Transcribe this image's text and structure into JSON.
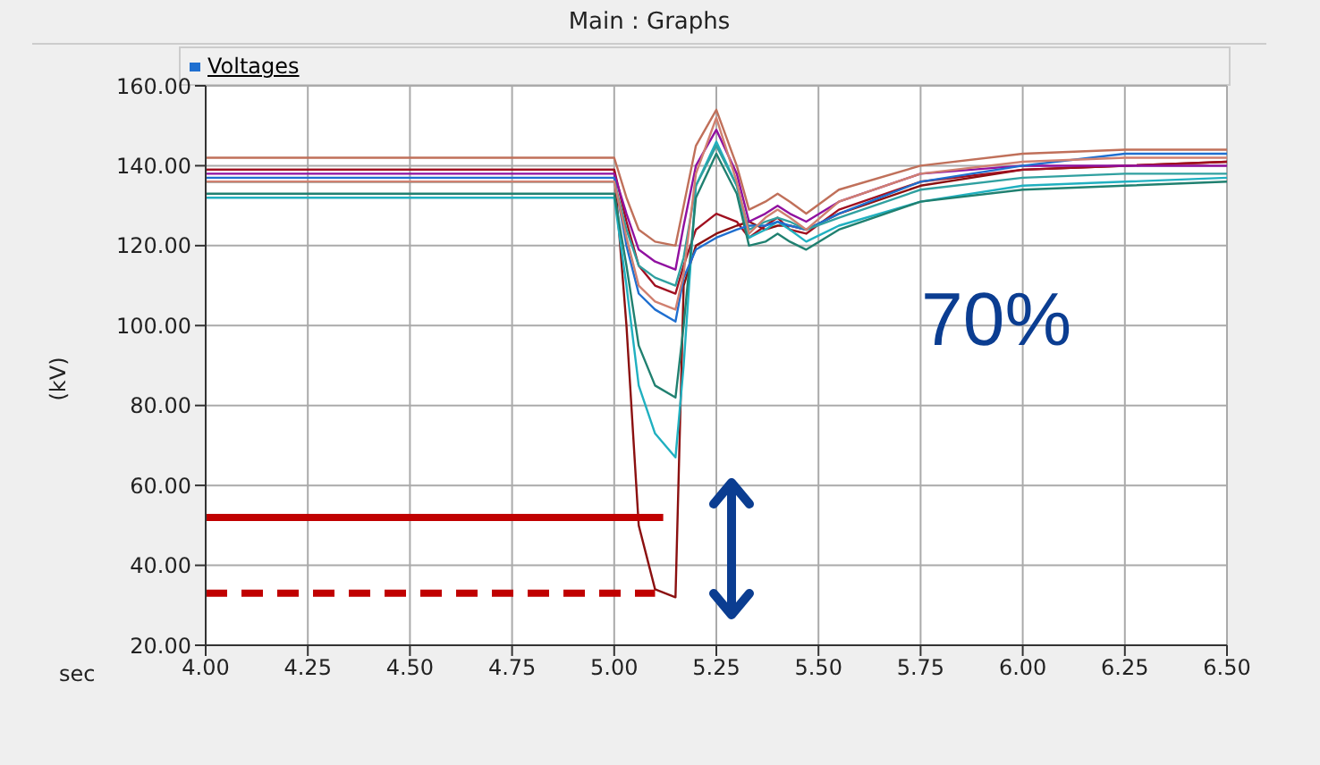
{
  "chart_data": {
    "type": "line",
    "title": "Main : Graphs",
    "legend_title": "Voltages",
    "xlabel": "sec",
    "ylabel": "(kV)",
    "annotations": [
      "70%"
    ],
    "x": [
      4.0,
      5.0,
      5.03,
      5.06,
      5.1,
      5.15,
      5.17,
      5.2,
      5.25,
      5.3,
      5.33,
      5.37,
      5.4,
      5.43,
      5.47,
      5.55,
      5.75,
      6.0,
      6.25,
      6.5
    ],
    "series": [
      {
        "color": "#c0705a",
        "values": [
          142,
          142,
          132,
          124,
          121,
          120,
          130,
          145,
          154,
          140,
          129,
          131,
          133,
          131,
          128,
          134,
          140,
          143,
          144,
          144
        ]
      },
      {
        "color": "#8b1010",
        "values": [
          139,
          139,
          100,
          50,
          34,
          32,
          110,
          120,
          123,
          125,
          126,
          124,
          125,
          125,
          124,
          128,
          135,
          139,
          140,
          141
        ]
      },
      {
        "color": "#a01020",
        "values": [
          139,
          139,
          126,
          115,
          110,
          108,
          115,
          124,
          128,
          126,
          122,
          125,
          127,
          124,
          123,
          129,
          136,
          139,
          140,
          141
        ]
      },
      {
        "color": "#9010a0",
        "values": [
          138,
          138,
          128,
          119,
          116,
          114,
          125,
          140,
          149,
          138,
          126,
          128,
          130,
          128,
          126,
          131,
          138,
          140,
          140,
          140
        ]
      },
      {
        "color": "#20b0c0",
        "values": [
          132,
          132,
          110,
          85,
          73,
          67,
          90,
          135,
          146,
          135,
          122,
          124,
          126,
          124,
          121,
          125,
          131,
          135,
          136,
          137
        ]
      },
      {
        "color": "#208070",
        "values": [
          133,
          133,
          115,
          95,
          85,
          82,
          100,
          132,
          143,
          133,
          120,
          121,
          123,
          121,
          119,
          124,
          131,
          134,
          135,
          136
        ]
      },
      {
        "color": "#1f6fd0",
        "values": [
          137,
          137,
          120,
          108,
          104,
          101,
          112,
          119,
          122,
          124,
          125,
          125,
          126,
          125,
          124,
          128,
          136,
          140,
          143,
          143
        ]
      },
      {
        "color": "#30a0a0",
        "values": [
          136,
          136,
          124,
          115,
          112,
          110,
          117,
          135,
          145,
          135,
          124,
          126,
          127,
          126,
          124,
          127,
          134,
          137,
          138,
          138
        ]
      },
      {
        "color": "#d08070",
        "values": [
          136,
          136,
          122,
          110,
          106,
          104,
          113,
          138,
          152,
          136,
          123,
          127,
          129,
          127,
          124,
          131,
          138,
          141,
          142,
          142
        ]
      },
      {
        "color": "#c00000",
        "x": [
          4.0,
          5.12
        ],
        "values": [
          52,
          52
        ],
        "line_style": "solid"
      },
      {
        "color": "#c00000",
        "x": [
          4.0,
          5.1
        ],
        "values": [
          33,
          33
        ],
        "line_style": "dashed"
      }
    ],
    "xlim": [
      4.0,
      6.5
    ],
    "xticks": [
      {
        "value": 4.0,
        "label": "4.00"
      },
      {
        "value": 4.25,
        "label": "4.25"
      },
      {
        "value": 4.5,
        "label": "4.50"
      },
      {
        "value": 4.75,
        "label": "4.75"
      },
      {
        "value": 5.0,
        "label": "5.00"
      },
      {
        "value": 5.25,
        "label": "5.25"
      },
      {
        "value": 5.5,
        "label": "5.50"
      },
      {
        "value": 5.75,
        "label": "5.75"
      },
      {
        "value": 6.0,
        "label": "6.00"
      },
      {
        "value": 6.25,
        "label": "6.25"
      },
      {
        "value": 6.5,
        "label": "6.50"
      }
    ],
    "ylim": [
      20,
      160
    ],
    "yticks": [
      {
        "value": 20,
        "label": "20.00"
      },
      {
        "value": 40,
        "label": "40.00"
      },
      {
        "value": 60,
        "label": "60.00"
      },
      {
        "value": 80,
        "label": "80.00"
      },
      {
        "value": 100,
        "label": "100.00"
      },
      {
        "value": 120,
        "label": "120.00"
      },
      {
        "value": 140,
        "label": "140.00"
      },
      {
        "value": 160,
        "label": "160.00"
      }
    ],
    "grid": true
  }
}
